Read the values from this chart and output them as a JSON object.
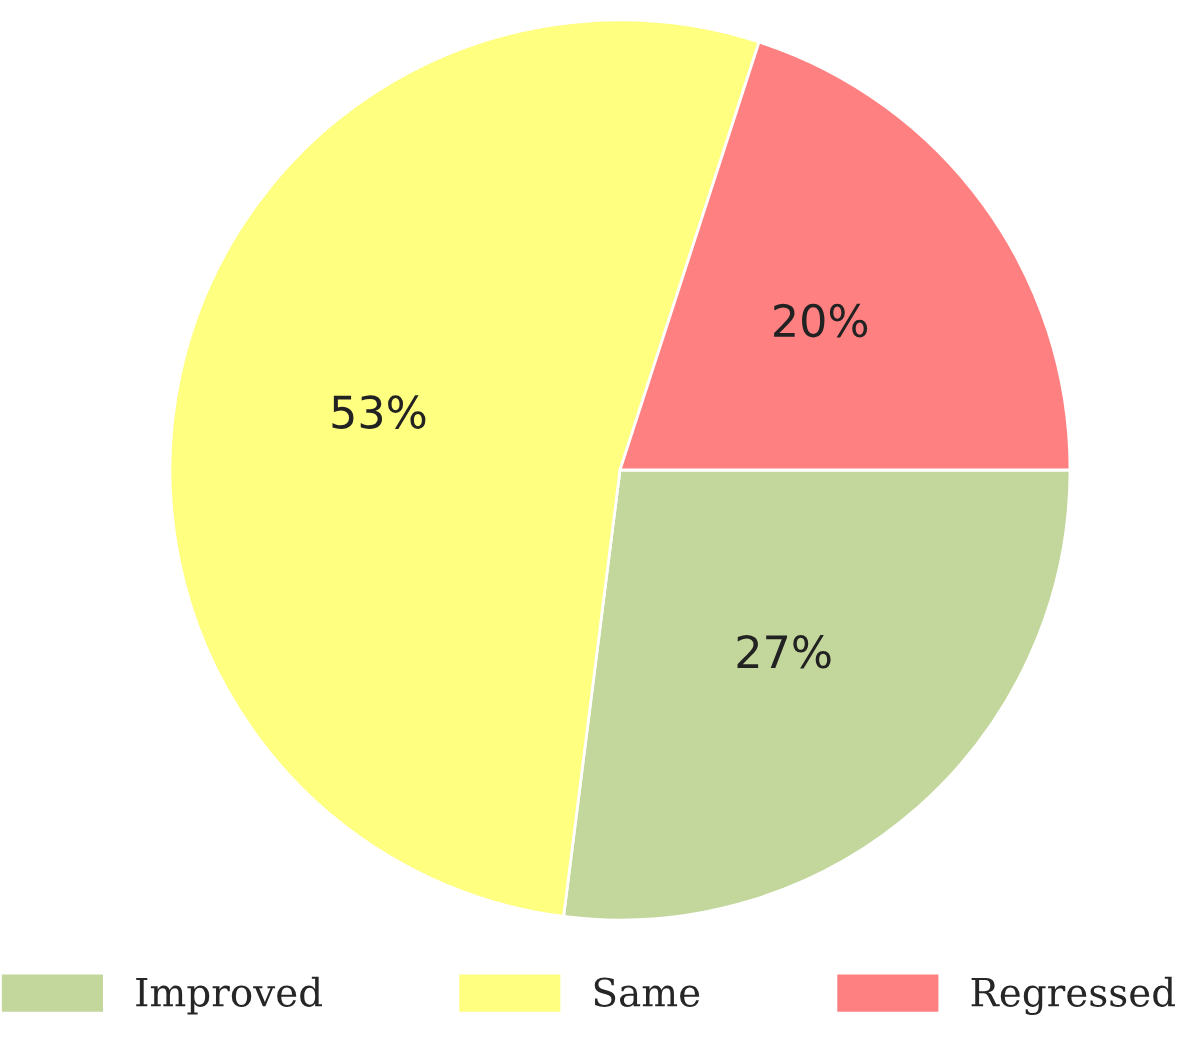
{
  "chart_data": {
    "type": "pie",
    "categories": [
      "Improved",
      "Same",
      "Regressed"
    ],
    "values": [
      27,
      53,
      20
    ],
    "colors": [
      "#c3d69b",
      "#ffff80",
      "#ff8080"
    ],
    "value_labels": [
      "27%",
      "53%",
      "20%"
    ],
    "legend": "bottom"
  }
}
